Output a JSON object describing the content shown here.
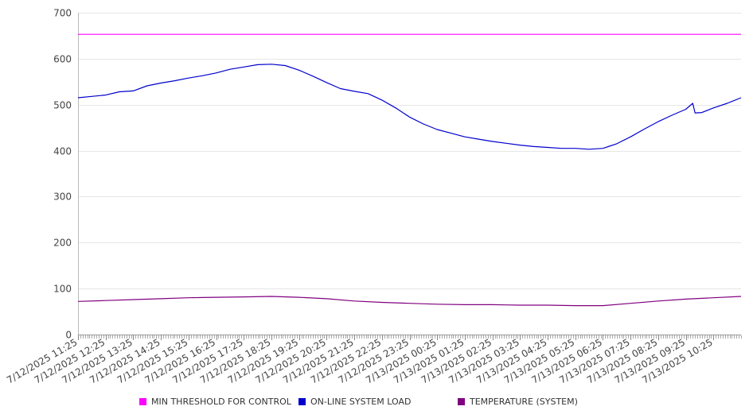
{
  "chart_data": {
    "type": "line",
    "title": "",
    "xlabel": "",
    "ylabel": "",
    "ylim": [
      0,
      700
    ],
    "yticks": [
      0,
      100,
      200,
      300,
      400,
      500,
      600,
      700
    ],
    "grid": true,
    "legend_position": "bottom",
    "x_tick_labels": [
      "7/12/2025 11:25",
      "7/12/2025 12:25",
      "7/12/2025 13:25",
      "7/12/2025 14:25",
      "7/12/2025 15:25",
      "7/12/2025 16:25",
      "7/12/2025 17:25",
      "7/12/2025 18:25",
      "7/12/2025 19:25",
      "7/12/2025 20:25",
      "7/12/2025 21:25",
      "7/12/2025 22:25",
      "7/12/2025 23:25",
      "7/13/2025 00:25",
      "7/13/2025 01:25",
      "7/13/2025 02:25",
      "7/13/2025 03:25",
      "7/13/2025 04:25",
      "7/13/2025 05:25",
      "7/13/2025 06:25",
      "7/13/2025 07:25",
      "7/13/2025 08:25",
      "7/13/2025 09:25",
      "7/13/2025 10:25"
    ],
    "x_range": [
      "7/12/2025 11:25",
      "7/13/2025 11:25"
    ],
    "series": [
      {
        "name": "MIN THRESHOLD FOR CONTROL",
        "color": "#ff00ff",
        "points": [
          [
            "7/12/2025 11:25",
            653
          ],
          [
            "7/13/2025 11:25",
            653
          ]
        ]
      },
      {
        "name": "ON-LINE SYSTEM LOAD",
        "color": "#0000cc",
        "points": [
          [
            "7/12/2025 11:25",
            515
          ],
          [
            "7/12/2025 11:55",
            518
          ],
          [
            "7/12/2025 12:25",
            521
          ],
          [
            "7/12/2025 12:55",
            528
          ],
          [
            "7/12/2025 13:25",
            530
          ],
          [
            "7/12/2025 13:55",
            541
          ],
          [
            "7/12/2025 14:25",
            547
          ],
          [
            "7/12/2025 14:55",
            552
          ],
          [
            "7/12/2025 15:25",
            558
          ],
          [
            "7/12/2025 15:55",
            563
          ],
          [
            "7/12/2025 16:25",
            569
          ],
          [
            "7/12/2025 16:55",
            577
          ],
          [
            "7/12/2025 17:25",
            582
          ],
          [
            "7/12/2025 17:55",
            587
          ],
          [
            "7/12/2025 18:25",
            588
          ],
          [
            "7/12/2025 18:55",
            585
          ],
          [
            "7/12/2025 19:25",
            575
          ],
          [
            "7/12/2025 19:55",
            562
          ],
          [
            "7/12/2025 20:25",
            548
          ],
          [
            "7/12/2025 20:55",
            535
          ],
          [
            "7/12/2025 21:25",
            529
          ],
          [
            "7/12/2025 21:55",
            524
          ],
          [
            "7/12/2025 22:25",
            510
          ],
          [
            "7/12/2025 22:55",
            493
          ],
          [
            "7/12/2025 23:25",
            473
          ],
          [
            "7/12/2025 23:55",
            458
          ],
          [
            "7/13/2025 00:25",
            446
          ],
          [
            "7/13/2025 00:55",
            438
          ],
          [
            "7/13/2025 01:25",
            430
          ],
          [
            "7/13/2025 01:55",
            425
          ],
          [
            "7/13/2025 02:25",
            420
          ],
          [
            "7/13/2025 02:55",
            416
          ],
          [
            "7/13/2025 03:25",
            412
          ],
          [
            "7/13/2025 03:55",
            409
          ],
          [
            "7/13/2025 04:25",
            407
          ],
          [
            "7/13/2025 04:55",
            405
          ],
          [
            "7/13/2025 05:25",
            405
          ],
          [
            "7/13/2025 05:55",
            403
          ],
          [
            "7/13/2025 06:25",
            405
          ],
          [
            "7/13/2025 06:55",
            415
          ],
          [
            "7/13/2025 07:25",
            430
          ],
          [
            "7/13/2025 07:55",
            447
          ],
          [
            "7/13/2025 08:25",
            463
          ],
          [
            "7/13/2025 08:55",
            477
          ],
          [
            "7/13/2025 09:25",
            490
          ],
          [
            "7/13/2025 09:40",
            503
          ],
          [
            "7/13/2025 09:45",
            482
          ],
          [
            "7/13/2025 10:00",
            483
          ],
          [
            "7/13/2025 10:25",
            493
          ],
          [
            "7/13/2025 10:55",
            503
          ],
          [
            "7/13/2025 11:25",
            515
          ]
        ]
      },
      {
        "name": "TEMPERATURE (SYSTEM)",
        "color": "#800080",
        "points": [
          [
            "7/12/2025 11:25",
            72
          ],
          [
            "7/12/2025 12:25",
            74
          ],
          [
            "7/12/2025 13:25",
            76
          ],
          [
            "7/12/2025 14:25",
            78
          ],
          [
            "7/12/2025 15:25",
            80
          ],
          [
            "7/12/2025 16:25",
            81
          ],
          [
            "7/12/2025 17:25",
            82
          ],
          [
            "7/12/2025 18:25",
            83
          ],
          [
            "7/12/2025 19:25",
            81
          ],
          [
            "7/12/2025 20:25",
            78
          ],
          [
            "7/12/2025 21:25",
            73
          ],
          [
            "7/12/2025 22:25",
            70
          ],
          [
            "7/12/2025 23:25",
            68
          ],
          [
            "7/13/2025 00:25",
            66
          ],
          [
            "7/13/2025 01:25",
            65
          ],
          [
            "7/13/2025 02:25",
            65
          ],
          [
            "7/13/2025 03:25",
            64
          ],
          [
            "7/13/2025 04:25",
            64
          ],
          [
            "7/13/2025 05:25",
            63
          ],
          [
            "7/13/2025 06:25",
            63
          ],
          [
            "7/13/2025 07:25",
            68
          ],
          [
            "7/13/2025 08:25",
            73
          ],
          [
            "7/13/2025 09:25",
            77
          ],
          [
            "7/13/2025 10:25",
            80
          ],
          [
            "7/13/2025 11:25",
            83
          ]
        ]
      }
    ]
  }
}
